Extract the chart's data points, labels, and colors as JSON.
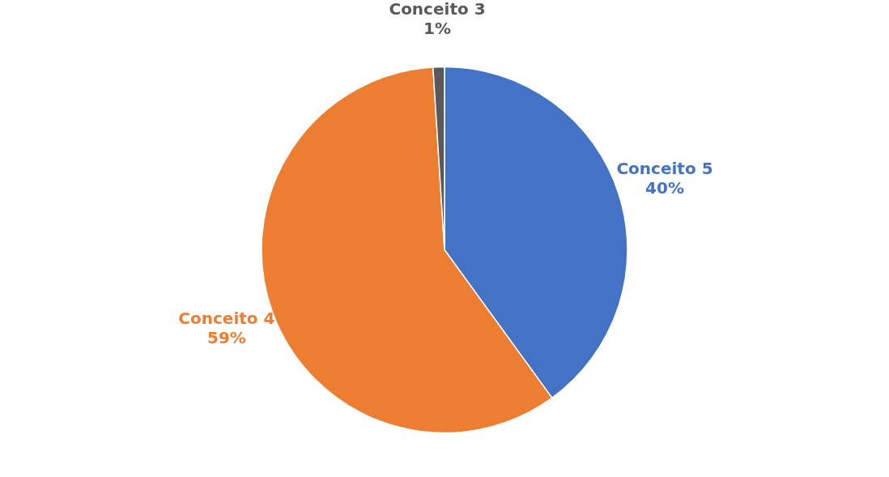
{
  "chart_data": {
    "type": "pie",
    "categories": [
      "Conceito 5",
      "Conceito 4",
      "Conceito 3"
    ],
    "values": [
      40,
      59,
      1
    ],
    "colors": [
      "#4472c4",
      "#ed7d31",
      "#595959"
    ],
    "value_labels": [
      "40%",
      "59%",
      "1%"
    ],
    "legend": false
  }
}
